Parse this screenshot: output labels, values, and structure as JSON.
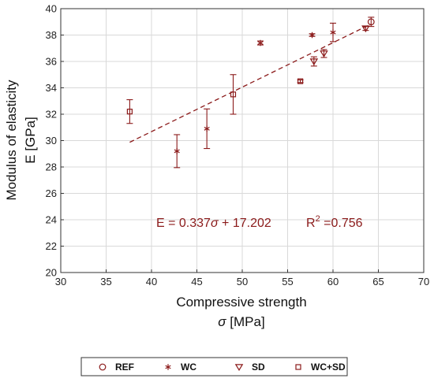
{
  "colors": {
    "marker": "#8b1a1a",
    "fit_line": "#8b1a1a",
    "grid": "#d9d9d9",
    "axes": "#333333",
    "annotation": "#8b1a1a"
  },
  "chart_data": {
    "type": "scatter",
    "title": "",
    "xlabel": "Compressive strength",
    "xlabel_symbol": "σ",
    "xlabel_unit": " [MPa]",
    "ylabel_line1": "Modulus of elasticity",
    "ylabel_line2": "E [GPa]",
    "xlim": [
      30,
      70
    ],
    "ylim": [
      20,
      40
    ],
    "xticks": [
      30,
      35,
      40,
      45,
      50,
      55,
      60,
      65,
      70
    ],
    "yticks": [
      20,
      22,
      24,
      26,
      28,
      30,
      32,
      34,
      36,
      38,
      40
    ],
    "grid": true,
    "legend_position": "bottom",
    "series": [
      {
        "name": "REF",
        "marker": "circle",
        "points": [
          {
            "x": 64.2,
            "y": 39.0,
            "err": 0.35
          }
        ]
      },
      {
        "name": "WC",
        "marker": "star",
        "points": [
          {
            "x": 42.8,
            "y": 29.2,
            "err": 1.25
          },
          {
            "x": 46.1,
            "y": 30.9,
            "err": 1.5
          },
          {
            "x": 52.0,
            "y": 37.4,
            "err": 0.15
          },
          {
            "x": 57.7,
            "y": 38.0,
            "err": 0.1
          },
          {
            "x": 60.0,
            "y": 38.2,
            "err": 0.7
          }
        ]
      },
      {
        "name": "SD",
        "marker": "triangle-down",
        "points": [
          {
            "x": 57.9,
            "y": 36.0,
            "err": 0.35
          },
          {
            "x": 59.0,
            "y": 36.6,
            "err": 0.3
          },
          {
            "x": 63.6,
            "y": 38.5,
            "err": 0.15
          }
        ]
      },
      {
        "name": "WC+SD",
        "marker": "square",
        "points": [
          {
            "x": 37.6,
            "y": 32.2,
            "err": 0.9
          },
          {
            "x": 49.0,
            "y": 33.5,
            "err": 1.5
          },
          {
            "x": 56.4,
            "y": 34.5,
            "err": 0.1
          }
        ]
      }
    ],
    "fit": {
      "slope": 0.337,
      "intercept": 17.202,
      "x_range": [
        37.6,
        64.2
      ],
      "style": "dashed"
    },
    "annotations": {
      "equation_left": "E = 0.337",
      "equation_symbol": "σ",
      "equation_right": " + 17.202",
      "r2_prefix": "R",
      "r2_sup": "2",
      "r2_suffix": " =0.756"
    }
  }
}
